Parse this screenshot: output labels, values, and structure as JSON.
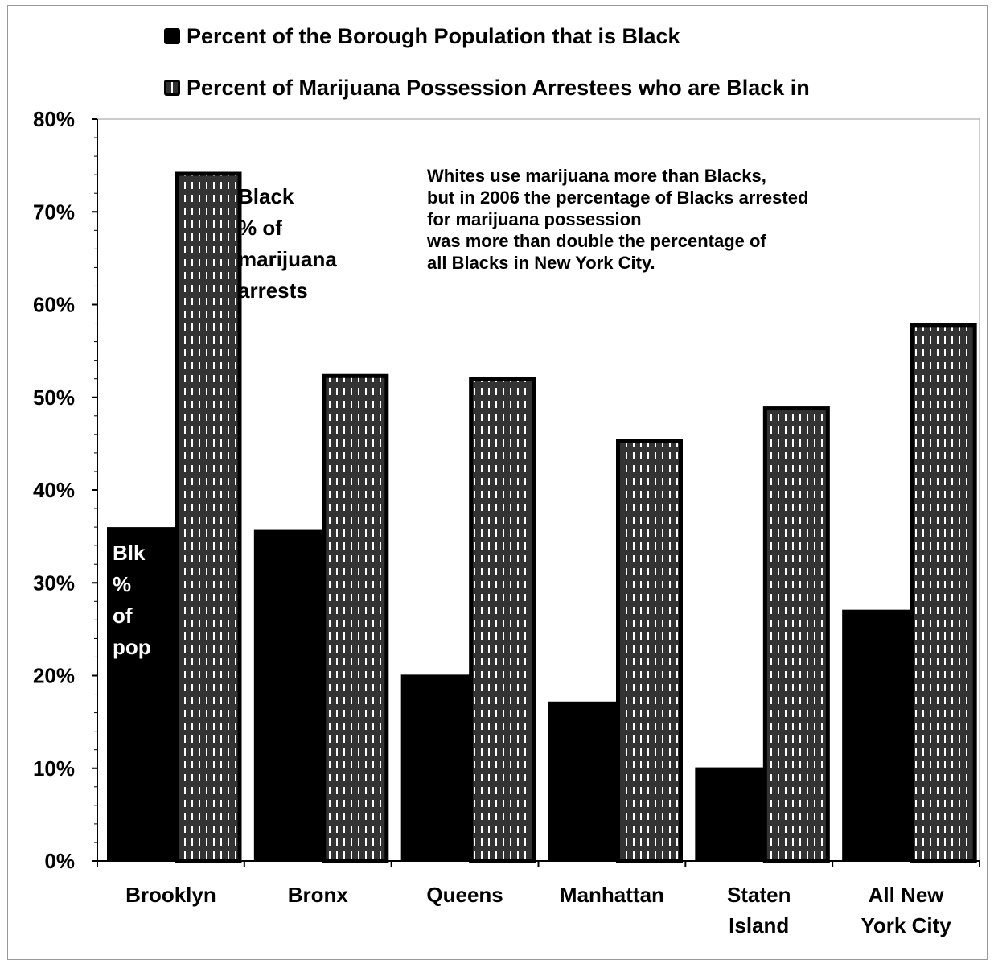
{
  "chart_data": {
    "type": "bar",
    "categories": [
      "Brooklyn",
      "Bronx",
      "Queens",
      "Manhattan",
      "Staten Island",
      "All New York City"
    ],
    "category_lines": [
      [
        "Brooklyn"
      ],
      [
        "Bronx"
      ],
      [
        "Queens"
      ],
      [
        "Manhattan"
      ],
      [
        "Staten",
        "Island"
      ],
      [
        "All New",
        "York City"
      ]
    ],
    "series": [
      {
        "name": "Percent of the Borough Population that is Black",
        "values": [
          36,
          35.7,
          20.1,
          17.2,
          10.1,
          27.1
        ],
        "fill": "solid-black"
      },
      {
        "name": "Percent of Marijuana Possession Arrestees who are Black in",
        "values": [
          74.1,
          52.3,
          52.0,
          45.3,
          48.8,
          57.8
        ],
        "fill": "dashed-pattern"
      }
    ],
    "ylim": [
      0,
      0.8
    ],
    "yticks": [
      "0%",
      "10%",
      "20%",
      "30%",
      "40%",
      "50%",
      "60%",
      "70%",
      "80%"
    ],
    "xlabel": "",
    "ylabel": "",
    "title": "",
    "legend_position": "top",
    "grid": false,
    "annotations": {
      "note": [
        "Whites use marijuana more than Blacks,",
        "but in 2006 the percentage of  Blacks arrested",
        "for marijuana possession",
        "was more than double the percentage of",
        "all Blacks in New York City."
      ],
      "arrests_label": [
        "Black",
        "% of",
        "marijuana",
        "arrests"
      ],
      "pop_label": [
        "Blk",
        "%",
        "of",
        "pop"
      ]
    }
  },
  "colors": {
    "bar_fill": "#000000",
    "pattern_fill": "#333333",
    "pattern_dash": "#ffffff",
    "axis": "#000000",
    "frame": "#999999"
  }
}
